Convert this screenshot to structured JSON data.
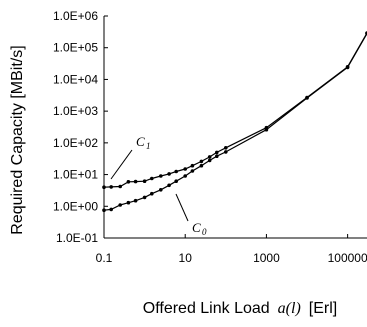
{
  "chart_data": {
    "type": "line",
    "xscale": "log",
    "yscale": "log",
    "xlim": [
      0.1,
      300000
    ],
    "ylim": [
      0.1,
      1000000
    ],
    "x_ticks": [
      {
        "value": 0.1,
        "label": "0.1"
      },
      {
        "value": 10,
        "label": "10"
      },
      {
        "value": 1000,
        "label": "1000"
      },
      {
        "value": 100000,
        "label": "100000"
      }
    ],
    "y_ticks": [
      {
        "value": 1000000,
        "label": "1.0E+06"
      },
      {
        "value": 100000,
        "label": "1.0E+05"
      },
      {
        "value": 10000,
        "label": "1.0E+04"
      },
      {
        "value": 1000,
        "label": "1.0E+03"
      },
      {
        "value": 100,
        "label": "1.0E+02"
      },
      {
        "value": 10,
        "label": "1.0E+01"
      },
      {
        "value": 1,
        "label": "1.0E+00"
      },
      {
        "value": 0.1,
        "label": "1.0E-01"
      }
    ],
    "ylabel": "Required Capacity [MBit/s]",
    "xlabel_main": "Offered Link Load",
    "xlabel_var": "a(l)",
    "xlabel_unit": "[Erl]",
    "grid": false,
    "series": [
      {
        "label_main": "C",
        "label_sub": "1",
        "x": [
          0.1,
          0.15,
          0.25,
          0.4,
          0.6,
          1.0,
          1.5,
          2.5,
          4,
          6,
          10,
          15,
          25,
          40,
          60,
          100,
          1000,
          10000,
          100000,
          300000
        ],
        "y": [
          4.0,
          4.1,
          4.2,
          5.9,
          6.0,
          6.2,
          7.5,
          9.0,
          10.5,
          12.5,
          15,
          19,
          26,
          36,
          50,
          70,
          300,
          2700,
          25000,
          290000
        ]
      },
      {
        "label_main": "C",
        "label_sub": "0",
        "x": [
          0.1,
          0.15,
          0.25,
          0.4,
          0.6,
          1.0,
          1.5,
          2.5,
          4,
          6,
          10,
          15,
          25,
          40,
          60,
          100,
          1000,
          10000,
          100000,
          300000
        ],
        "y": [
          0.75,
          0.8,
          1.1,
          1.3,
          1.5,
          1.9,
          2.5,
          3.3,
          4.6,
          6.2,
          9,
          13,
          19,
          28,
          38,
          52,
          260,
          2600,
          24000,
          280000
        ]
      }
    ]
  }
}
